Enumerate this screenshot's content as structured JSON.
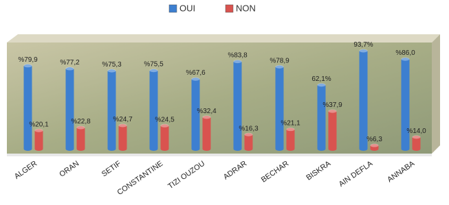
{
  "chart_data": {
    "type": "bar",
    "categories": [
      "ALGER",
      "ORAN",
      "SETIF",
      "CONSTANTINE",
      "TIZI OUZOU",
      "ADRAR",
      "BECHAR",
      "BISKRA",
      "AIN DEFLA",
      "ANNABA"
    ],
    "series": [
      {
        "name": "OUI",
        "color": "#3d7fd0",
        "values": [
          79.9,
          77.2,
          75.3,
          75.5,
          67.6,
          83.8,
          78.9,
          62.1,
          93.7,
          86.0
        ],
        "value_labels": [
          "%79,9",
          "%77,2",
          "%75,3",
          "%75,5",
          "%67,6",
          "%83,8",
          "%78,9",
          "62,1%",
          "93,7%",
          "%86,0"
        ]
      },
      {
        "name": "NON",
        "color": "#d9534f",
        "values": [
          20.1,
          22.8,
          24.7,
          24.5,
          32.4,
          16.3,
          21.1,
          37.9,
          6.3,
          14.0
        ],
        "value_labels": [
          "%20,1",
          "%22,8",
          "%24,7",
          "%24,5",
          "%32,4",
          "%16,3",
          "%21,1",
          "%37,9",
          "%6,3",
          "%14,0"
        ]
      }
    ],
    "legend": "top"
  }
}
